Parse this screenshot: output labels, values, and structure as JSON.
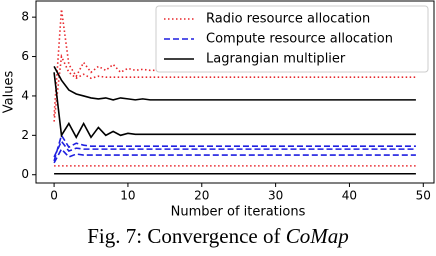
{
  "chart_data": {
    "type": "line",
    "xlabel": "Number of iterations",
    "ylabel": "Values",
    "x": [
      0,
      1,
      2,
      3,
      4,
      5,
      6,
      7,
      8,
      9,
      10,
      11,
      12,
      13,
      14,
      15,
      16,
      17,
      18,
      19,
      20,
      49
    ],
    "series": [
      {
        "name": "Radio resource allocation",
        "color": "#e8262b",
        "style": "dotted",
        "values": [
          3.0,
          8.4,
          5.6,
          5.0,
          5.7,
          5.2,
          5.5,
          5.3,
          5.6,
          5.2,
          5.4,
          5.3,
          5.35,
          5.3,
          5.3,
          5.3,
          5.3,
          5.3,
          5.3,
          5.3,
          5.3,
          5.3
        ]
      },
      {
        "color": "#e8262b",
        "style": "dotted",
        "values": [
          2.7,
          6.0,
          5.2,
          4.9,
          5.1,
          4.9,
          5.0,
          4.95,
          4.95,
          4.95,
          4.95,
          4.95,
          4.95,
          4.95,
          4.95,
          4.95,
          4.95,
          4.95,
          4.95,
          4.95,
          4.95,
          4.95
        ]
      },
      {
        "color": "#e8262b",
        "style": "dotted",
        "values": [
          0.45,
          0.45,
          0.45,
          0.45,
          0.45,
          0.45,
          0.45,
          0.45,
          0.45,
          0.45,
          0.45,
          0.45,
          0.45,
          0.45,
          0.45,
          0.45,
          0.45,
          0.45,
          0.45,
          0.45,
          0.45,
          0.45
        ]
      },
      {
        "name": "Compute resource allocation",
        "color": "#1f1fe0",
        "style": "dashed",
        "values": [
          0.7,
          2.0,
          1.4,
          1.6,
          1.5,
          1.45,
          1.45,
          1.45,
          1.45,
          1.45,
          1.45,
          1.45,
          1.45,
          1.45,
          1.45,
          1.45,
          1.45,
          1.45,
          1.45,
          1.45,
          1.45,
          1.45
        ]
      },
      {
        "color": "#1f1fe0",
        "style": "dashed",
        "values": [
          0.9,
          1.7,
          1.2,
          1.35,
          1.3,
          1.3,
          1.3,
          1.3,
          1.3,
          1.3,
          1.3,
          1.3,
          1.3,
          1.3,
          1.3,
          1.3,
          1.3,
          1.3,
          1.3,
          1.3,
          1.3,
          1.3
        ]
      },
      {
        "color": "#1f1fe0",
        "style": "dashed",
        "values": [
          0.6,
          1.3,
          0.9,
          1.05,
          1.0,
          1.0,
          1.0,
          1.0,
          1.0,
          1.0,
          1.0,
          1.0,
          1.0,
          1.0,
          1.0,
          1.0,
          1.0,
          1.0,
          1.0,
          1.0,
          1.0,
          1.0
        ]
      },
      {
        "name": "Lagrangian multiplier",
        "color": "#000000",
        "style": "solid",
        "values": [
          5.5,
          4.8,
          4.3,
          4.1,
          4.0,
          3.9,
          3.85,
          3.9,
          3.8,
          3.9,
          3.85,
          3.8,
          3.85,
          3.8,
          3.8,
          3.8,
          3.8,
          3.8,
          3.8,
          3.8,
          3.8,
          3.8
        ]
      },
      {
        "color": "#000000",
        "style": "solid",
        "values": [
          5.2,
          2.0,
          2.6,
          1.9,
          2.6,
          1.9,
          2.4,
          2.0,
          2.2,
          2.0,
          2.1,
          2.05,
          2.05,
          2.05,
          2.05,
          2.05,
          2.05,
          2.05,
          2.05,
          2.05,
          2.05,
          2.05
        ]
      },
      {
        "color": "#000000",
        "style": "solid",
        "values": [
          0.05,
          0.05,
          0.05,
          0.05,
          0.05,
          0.05,
          0.05,
          0.05,
          0.05,
          0.05,
          0.05,
          0.05,
          0.05,
          0.05,
          0.05,
          0.05,
          0.05,
          0.05,
          0.05,
          0.05,
          0.05,
          0.05
        ]
      }
    ],
    "xlim": [
      -2.45,
      51.45
    ],
    "xticks": [
      0,
      10,
      20,
      30,
      40,
      50
    ],
    "ylim": [
      -0.42,
      8.82
    ],
    "yticks": [
      0,
      2,
      4,
      6,
      8
    ],
    "legend": "upper right"
  },
  "caption": {
    "text": "Fig. 7: Convergence of",
    "emphasis": "CoMap"
  }
}
